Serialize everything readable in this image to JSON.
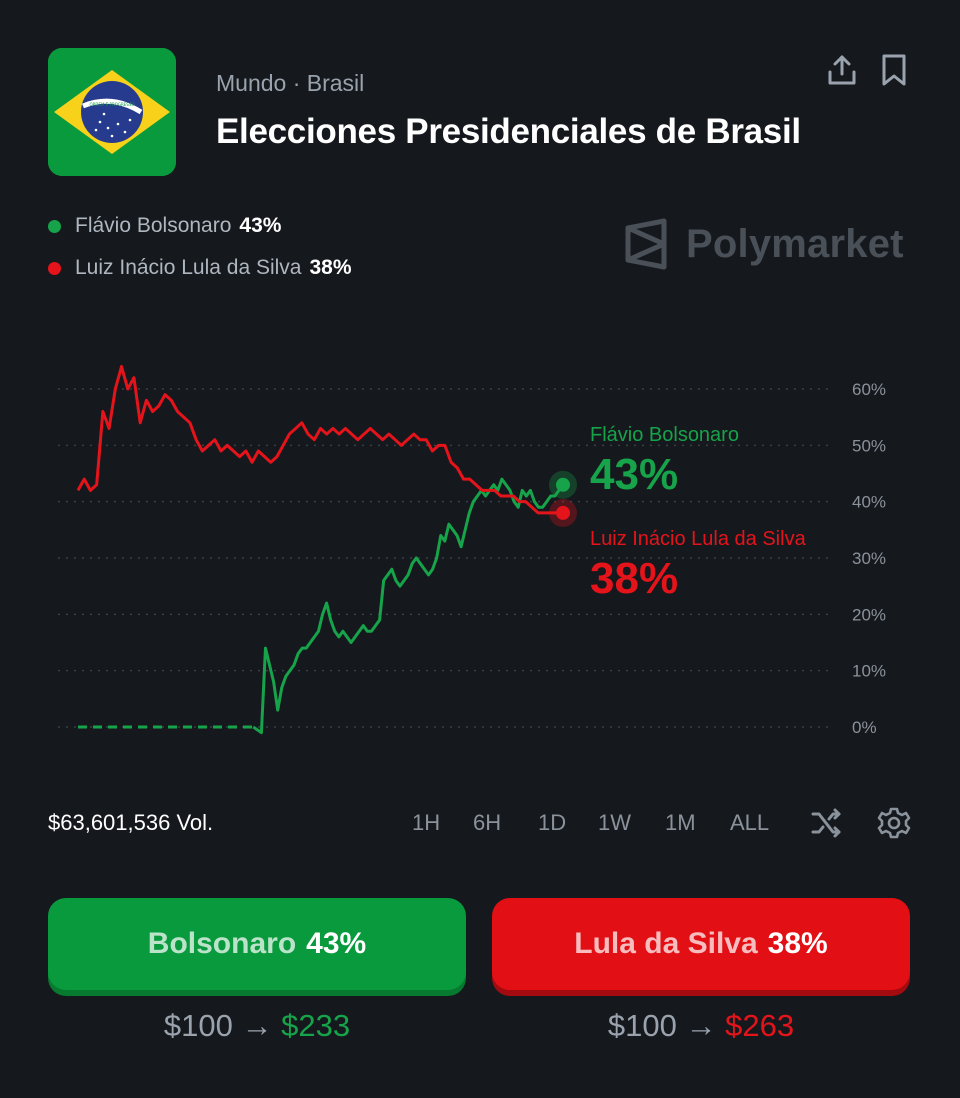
{
  "header": {
    "breadcrumb": "Mundo · Brasil",
    "title": "Elecciones Presidenciales de Brasil",
    "flag_motto": "ORDEM E PROGRESSO"
  },
  "brand": {
    "name": "Polymarket"
  },
  "legend": [
    {
      "name": "Flávio Bolsonaro",
      "pct": "43%",
      "color": "#16a34a"
    },
    {
      "name": "Luiz Inácio Lula da Silva",
      "pct": "38%",
      "color": "#e5141b"
    }
  ],
  "chart_data": {
    "type": "line",
    "y_ticks": [
      "60%",
      "50%",
      "40%",
      "30%",
      "20%",
      "10%",
      "0%"
    ],
    "ylim": [
      0,
      60
    ],
    "grid": true,
    "series": [
      {
        "name": "Flávio Bolsonaro",
        "color": "#16a34a",
        "end_label": "43%",
        "values": [
          0,
          0,
          0,
          0,
          0,
          0,
          0,
          0,
          0,
          0,
          0,
          0,
          0,
          0,
          0,
          0,
          0,
          0,
          0,
          0,
          0,
          0,
          0,
          0,
          0,
          0,
          0,
          0,
          0,
          0,
          0,
          0,
          0,
          0,
          0,
          0,
          0,
          0,
          0,
          0,
          0,
          0,
          0,
          0,
          -0.5,
          -1,
          14,
          11,
          8,
          3,
          7,
          9,
          10,
          11,
          13,
          14,
          14,
          15,
          16,
          17,
          20,
          22,
          19,
          17,
          16,
          17,
          16,
          15,
          16,
          17,
          18,
          17,
          17,
          18,
          19,
          26,
          27,
          28,
          26,
          25,
          26,
          27,
          29,
          30,
          29,
          28,
          27,
          28,
          30,
          34,
          33,
          36,
          35,
          34,
          32,
          35,
          38,
          40,
          41,
          42,
          41,
          42,
          43,
          42,
          44,
          43,
          42,
          40,
          39,
          42,
          41,
          42,
          40,
          39,
          39,
          40,
          41,
          41,
          42,
          43
        ]
      },
      {
        "name": "Luiz Inácio Lula da Silva",
        "color": "#e5141b",
        "end_label": "38%",
        "values": [
          42,
          44,
          42,
          43,
          56,
          53,
          60,
          64,
          60,
          62,
          54,
          58,
          56,
          57,
          59,
          58,
          56,
          55,
          54,
          51,
          49,
          50,
          51,
          49,
          50,
          49,
          48,
          49,
          47,
          49,
          48,
          47,
          48,
          50,
          52,
          53,
          54,
          52,
          51,
          53,
          52,
          53,
          52,
          53,
          52,
          51,
          52,
          53,
          52,
          51,
          52,
          51,
          50,
          51,
          52,
          51,
          51,
          49,
          50,
          50,
          47,
          46,
          44,
          44,
          43,
          42,
          42,
          42,
          41,
          41,
          41,
          40,
          40,
          39,
          38,
          38,
          38,
          38,
          38
        ]
      }
    ]
  },
  "end_labels": {
    "top_name": "Flávio Bolsonaro",
    "top_value": "43%",
    "bottom_name": "Luiz Inácio Lula da Silva",
    "bottom_value": "38%"
  },
  "volume": "$63,601,536 Vol.",
  "ranges": [
    "1H",
    "6H",
    "1D",
    "1W",
    "1M",
    "ALL"
  ],
  "buttons": {
    "yes": {
      "name": "Bolsonaro",
      "pct": "43%"
    },
    "no": {
      "name": "Lula da Silva",
      "pct": "38%"
    }
  },
  "payouts": {
    "yes": {
      "stake": "$100",
      "arrow": "→",
      "win": "$233",
      "color": "#16a34a"
    },
    "no": {
      "stake": "$100",
      "arrow": "→",
      "win": "$263",
      "color": "#e5141b"
    }
  }
}
